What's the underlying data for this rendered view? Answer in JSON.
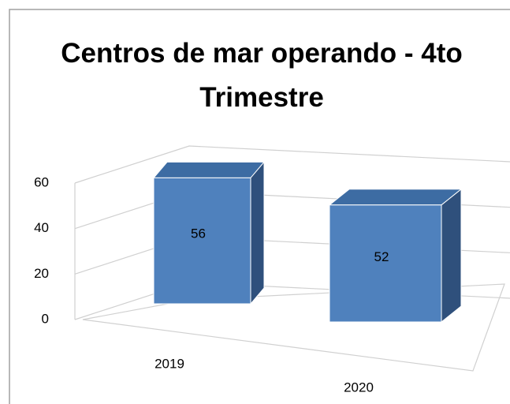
{
  "chart_data": {
    "type": "bar3d",
    "title": "Centros de mar operando - 4to Trimestre",
    "categories": [
      "2019",
      "2020"
    ],
    "values": [
      56,
      52
    ],
    "color": "#4f81bd",
    "ylim": [
      0,
      60
    ],
    "yticks": [
      0,
      20,
      40,
      60
    ],
    "grid": true
  }
}
